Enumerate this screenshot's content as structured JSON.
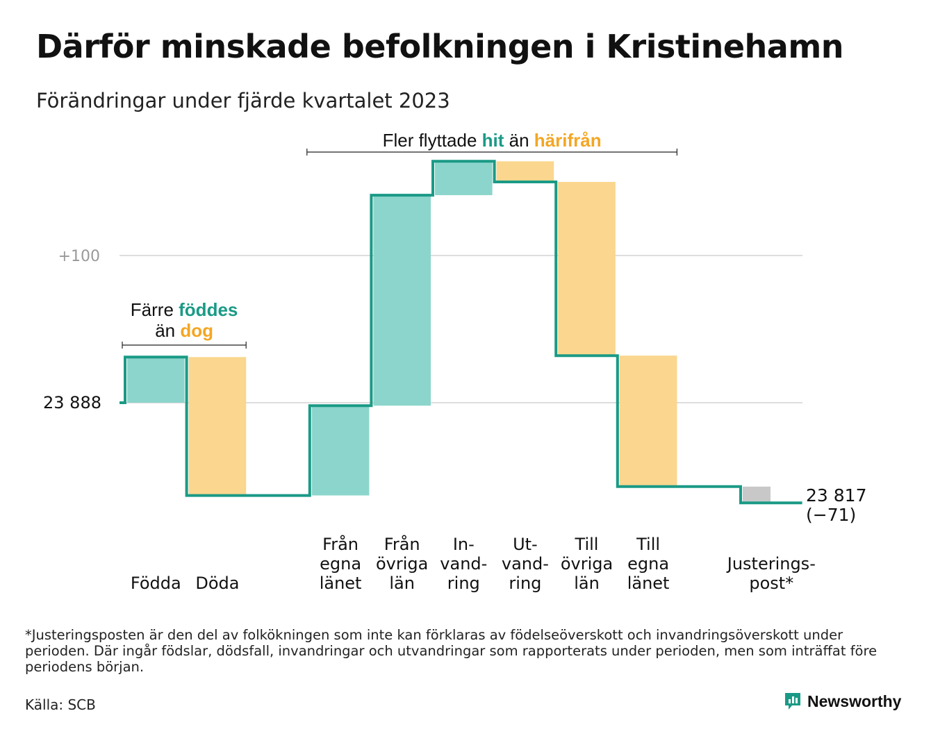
{
  "title": "Därför minskade befolkningen i Kristinehamn",
  "subtitle": "Förändringar under fjärde kvartalet 2023",
  "colors": {
    "in": "#8cd5cc",
    "out": "#fad68e",
    "line": "#1a9a86",
    "adjust": "#c8c8c8",
    "in_text": "#1a9a86",
    "out_text": "#f4a623",
    "grid": "#dddddd",
    "tick": "#999999"
  },
  "chart_data": {
    "type": "waterfall",
    "start_value": 23888,
    "start_label": "23  888",
    "end_label_line1": "23 817",
    "end_label_line2": "(−71)",
    "ylim": [
      23800,
      24020
    ],
    "yticks": [
      {
        "value": 23988,
        "label": "+100"
      }
    ],
    "steps": [
      {
        "label_lines": [
          "Födda"
        ],
        "value": 31,
        "kind": "in"
      },
      {
        "label_lines": [
          "Döda"
        ],
        "value": -94,
        "kind": "out"
      },
      {
        "label_lines": [],
        "value": 0,
        "kind": "gap"
      },
      {
        "label_lines": [
          "Från",
          "egna",
          "länet"
        ],
        "value": 61,
        "kind": "in"
      },
      {
        "label_lines": [
          "Från",
          "övriga",
          "län"
        ],
        "value": 143,
        "kind": "in"
      },
      {
        "label_lines": [
          "In-",
          "vand-",
          "ring"
        ],
        "value": 23,
        "kind": "in"
      },
      {
        "label_lines": [
          "Ut-",
          "vand-",
          "ring"
        ],
        "value": -14,
        "kind": "out"
      },
      {
        "label_lines": [
          "Till",
          "övriga",
          "län"
        ],
        "value": -118,
        "kind": "out"
      },
      {
        "label_lines": [
          "Till",
          "egna",
          "länet"
        ],
        "value": -89,
        "kind": "out"
      },
      {
        "label_lines": [],
        "value": 0,
        "kind": "gap"
      },
      {
        "label_lines": [
          "Justerings-",
          "post*"
        ],
        "value": -11,
        "kind": "adjust"
      }
    ],
    "annotations": [
      {
        "parts": [
          {
            "text": "Färre ",
            "style": "plain"
          },
          {
            "text": "föddes",
            "style": "in"
          }
        ],
        "line2": [
          {
            "text": "än ",
            "style": "plain"
          },
          {
            "text": "dog",
            "style": "out"
          }
        ],
        "from_step": 0,
        "to_step": 1
      },
      {
        "parts": [
          {
            "text": "Fler flyttade ",
            "style": "plain"
          },
          {
            "text": "hit",
            "style": "in"
          },
          {
            "text": " än ",
            "style": "plain"
          },
          {
            "text": "härifrån",
            "style": "out"
          }
        ],
        "from_step": 3,
        "to_step": 8
      }
    ]
  },
  "footnote": "*Justeringsposten är den del av folkökningen som inte kan förklaras av födelseöverskott och invandringsöverskott under perioden. Där ingår födslar, dödsfall, invandringar och utvandringar som rapporterats under perioden, men som inträffat före periodens början.",
  "source": "Källa: SCB",
  "brand": {
    "name": "Newsworthy",
    "icon": "newsworthy-logo-icon"
  }
}
